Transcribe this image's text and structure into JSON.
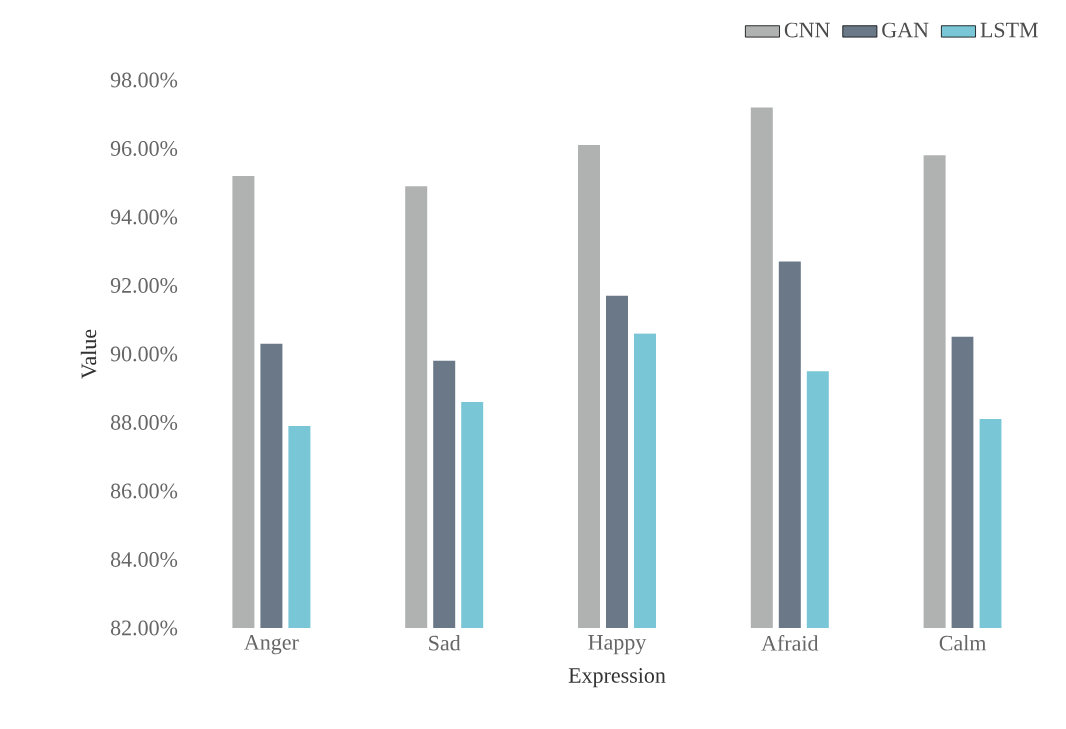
{
  "chart_data": {
    "type": "bar",
    "xlabel": "Expression",
    "ylabel": "Value",
    "categories": [
      "Anger",
      "Sad",
      "Happy",
      "Afraid",
      "Calm"
    ],
    "series": [
      {
        "name": "CNN",
        "color": "#b0b2b2",
        "values": [
          95.2,
          94.9,
          96.1,
          97.2,
          95.8
        ]
      },
      {
        "name": "GAN",
        "color": "#6a7888",
        "values": [
          90.3,
          89.8,
          91.7,
          92.7,
          90.5
        ]
      },
      {
        "name": "LSTM",
        "color": "#79c7d6",
        "values": [
          87.9,
          88.6,
          90.6,
          89.5,
          88.1
        ]
      }
    ],
    "ylim": [
      82,
      98
    ],
    "yticks": [
      {
        "value": 82,
        "label": "82.00%"
      },
      {
        "value": 84,
        "label": "84.00%"
      },
      {
        "value": 86,
        "label": "86.00%"
      },
      {
        "value": 88,
        "label": "88.00%"
      },
      {
        "value": 90,
        "label": "90.00%"
      },
      {
        "value": 92,
        "label": "92.00%"
      },
      {
        "value": 94,
        "label": "94.00%"
      },
      {
        "value": 96,
        "label": "96.00%"
      },
      {
        "value": 98,
        "label": "98.00%"
      }
    ],
    "grid": false,
    "legend": "top right"
  }
}
